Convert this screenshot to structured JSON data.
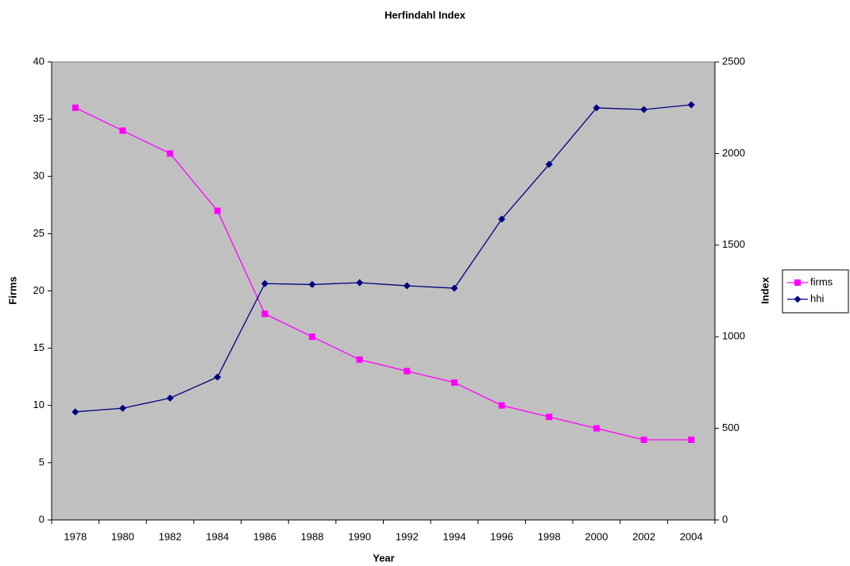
{
  "chart_data": {
    "type": "line",
    "title": "Herfindahl Index",
    "x_label": "Year",
    "y_label": "Firms",
    "y2_label": "Index",
    "categories": [
      "1978",
      "1980",
      "1982",
      "1984",
      "1986",
      "1988",
      "1990",
      "1992",
      "1994",
      "1996",
      "1998",
      "2000",
      "2002",
      "2004"
    ],
    "series": [
      {
        "name": "firms",
        "color": "#ff00ff",
        "marker": "square",
        "values": [
          36,
          34,
          32,
          27,
          18,
          16,
          14,
          13,
          12,
          10,
          9,
          8,
          7,
          7
        ]
      },
      {
        "name": "hhi",
        "color": "#000080",
        "marker": "diamond",
        "axis": "y2",
        "values": [
          590,
          610,
          665,
          780,
          1290,
          1285,
          1295,
          1278,
          1265,
          1642,
          1941,
          2249,
          2240,
          2266
        ]
      }
    ],
    "ylim": [
      0,
      40
    ],
    "yticks": [
      0,
      5,
      10,
      15,
      20,
      25,
      30,
      35,
      40
    ],
    "y2lim": [
      0,
      2500
    ],
    "y2ticks": [
      0,
      500,
      1000,
      1500,
      2000,
      2500
    ],
    "plot_background": "#c0c0c0",
    "legend": "right"
  }
}
